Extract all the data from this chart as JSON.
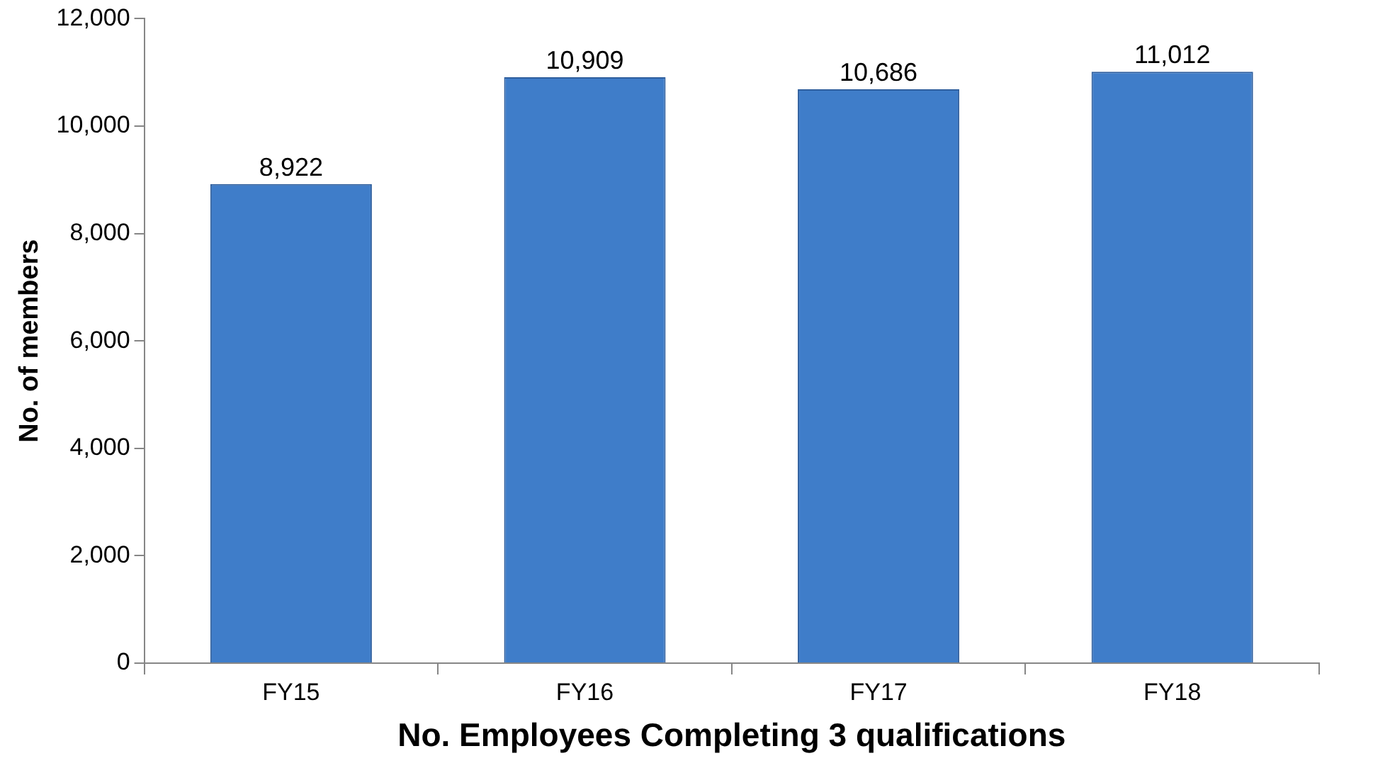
{
  "chart_data": {
    "type": "bar",
    "xlabel": "No. Employees Completing 3 qualifications",
    "ylabel": "No. of members",
    "categories": [
      "FY15",
      "FY16",
      "FY17",
      "FY18"
    ],
    "values": [
      8922,
      10909,
      10686,
      11012
    ],
    "color": "#3f7dc9",
    "ylim": [
      0,
      12000
    ],
    "yticks": [
      {
        "value": 0,
        "label": "0"
      },
      {
        "value": 2000,
        "label": "2,000"
      },
      {
        "value": 4000,
        "label": "4,000"
      },
      {
        "value": 6000,
        "label": "6,000"
      },
      {
        "value": 8000,
        "label": "8,000"
      },
      {
        "value": 10000,
        "label": "10,000"
      },
      {
        "value": 12000,
        "label": "12,000"
      }
    ],
    "value_labels": [
      "8,922",
      "10,909",
      "10,686",
      "11,012"
    ],
    "grid": false,
    "legend": false
  }
}
